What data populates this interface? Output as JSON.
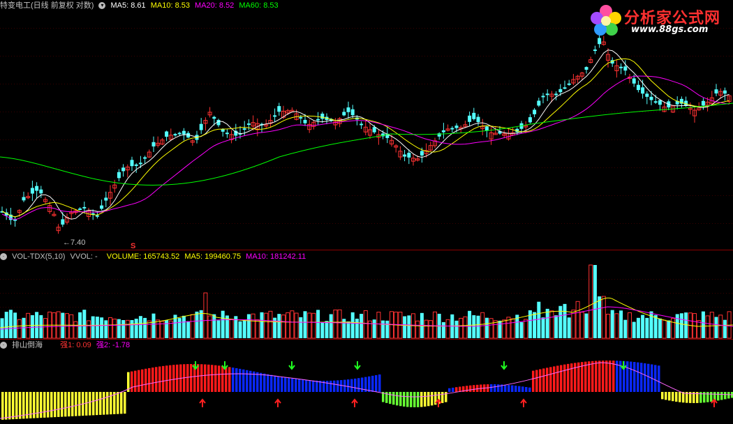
{
  "header": {
    "stock": "特变电工(日线 前复权 对数)",
    "ma5": "MA5: 8.61",
    "ma10": "MA10: 8.53",
    "ma20": "MA20: 8.52",
    "ma60": "MA60: 8.53"
  },
  "vol_panel": {
    "name": "VOL-TDX(5,10)",
    "vvol": "VVOL: -",
    "volume": "VOLUME: 165743.52",
    "ma5": "MA5: 199460.75",
    "ma10": "MA10: 181242.11"
  },
  "ind_panel": {
    "name": "排山倒海",
    "q1": "强1: 0.09",
    "q2": "强2: -1.78"
  },
  "annotations": {
    "low_label": "←7.40",
    "s_mark": "S"
  },
  "logo": {
    "text": "分析家公式网",
    "url": "www.88gs.com"
  },
  "colors": {
    "up": "#ff3232",
    "down": "#54ffff",
    "ma5": "#ffffff",
    "ma10": "#ffff00",
    "ma20": "#ff00ff",
    "ma60": "#00ff00",
    "grid": "#8b0000",
    "label_vol": "#ffff00"
  },
  "chart_data": [
    {
      "type": "candlestick",
      "series": [
        {
          "name": "MA5",
          "value": 8.61
        },
        {
          "name": "MA10",
          "value": 8.53
        },
        {
          "name": "MA20",
          "value": 8.52
        },
        {
          "name": "MA60",
          "value": 8.53
        }
      ],
      "annotations": [
        {
          "text": "7.40",
          "type": "low"
        }
      ],
      "log_scale": true,
      "grid": true
    },
    {
      "type": "bar",
      "series": [
        {
          "name": "VOLUME",
          "value": 165743.52
        },
        {
          "name": "MA5",
          "value": 199460.75
        },
        {
          "name": "MA10",
          "value": 181242.11
        }
      ]
    },
    {
      "type": "bar",
      "series": [
        {
          "name": "强1",
          "value": 0.09
        },
        {
          "name": "强2",
          "value": -1.78
        }
      ]
    }
  ]
}
